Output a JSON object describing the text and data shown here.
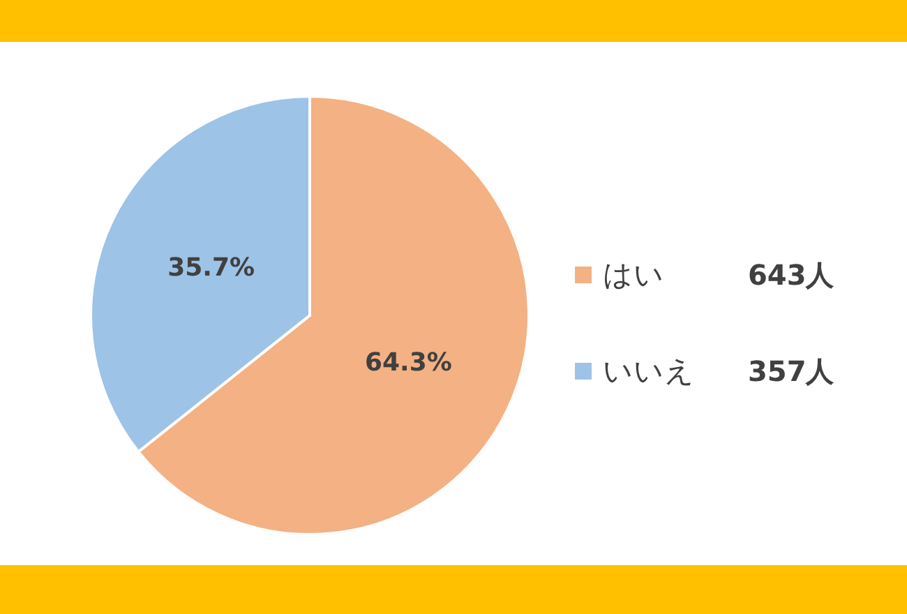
{
  "chart_data": {
    "type": "pie",
    "categories": [
      "はい",
      "いいえ"
    ],
    "values": [
      64.3,
      35.7
    ],
    "colors": [
      "#f4b183",
      "#9dc3e6"
    ],
    "value_labels": [
      "64.3%",
      "35.7%"
    ],
    "annotations": [
      "643人",
      "357人"
    ],
    "legend": "right"
  }
}
